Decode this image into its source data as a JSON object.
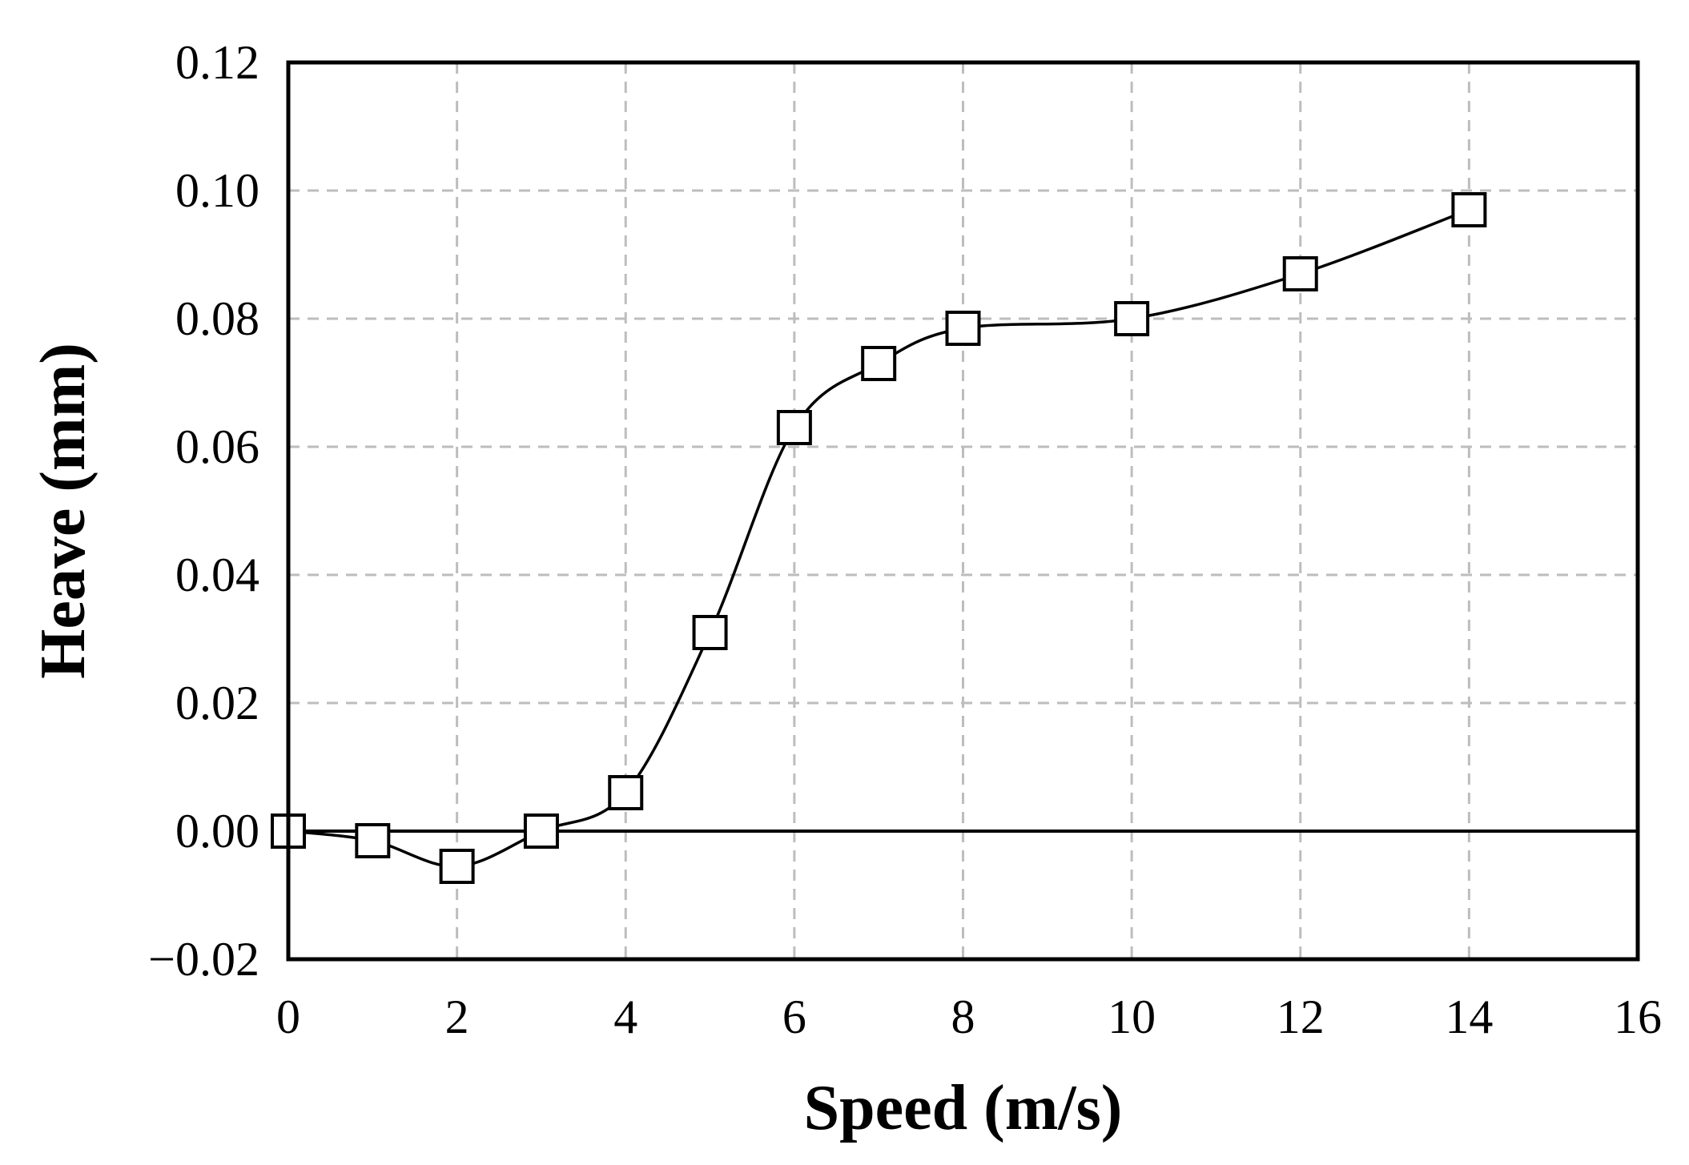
{
  "chart_data": {
    "type": "line",
    "title": "",
    "xlabel": "Speed (m/s)",
    "ylabel": "Heave (mm)",
    "xlim": [
      0,
      16
    ],
    "ylim": [
      -0.02,
      0.12
    ],
    "xticks": [
      0,
      2,
      4,
      6,
      8,
      10,
      12,
      14,
      16
    ],
    "xtick_labels": [
      "0",
      "2",
      "4",
      "6",
      "8",
      "10",
      "12",
      "14",
      "16"
    ],
    "yticks": [
      -0.02,
      0.0,
      0.02,
      0.04,
      0.06,
      0.08,
      0.1,
      0.12
    ],
    "ytick_labels": [
      "−0.02",
      "0.00",
      "0.02",
      "0.04",
      "0.06",
      "0.08",
      "0.10",
      "0.12"
    ],
    "grid": true,
    "legend": "none",
    "marker": "open-square",
    "line_style": "smooth",
    "series": [
      {
        "x": [
          0,
          1,
          2,
          3,
          4,
          5,
          6,
          7,
          8,
          10,
          12,
          14
        ],
        "values": [
          0.0,
          -0.0015,
          -0.0055,
          0.0,
          0.006,
          0.031,
          0.063,
          0.073,
          0.0785,
          0.08,
          0.087,
          0.097
        ]
      }
    ],
    "colors": {
      "line": "#000000",
      "grid": "#bdbdbd",
      "marker_fill": "#ffffff"
    }
  }
}
